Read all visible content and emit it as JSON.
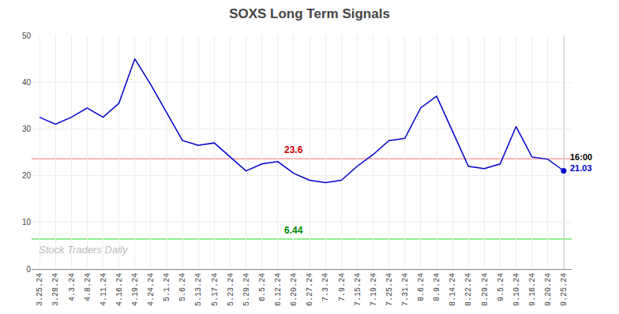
{
  "chart_data": {
    "type": "line",
    "title": "SOXS Long Term Signals",
    "categories": [
      "3.25.24",
      "3.28.24",
      "4.3.24",
      "4.8.24",
      "4.11.24",
      "4.16.24",
      "4.19.24",
      "4.24.24",
      "5.1.24",
      "5.6.24",
      "5.13.24",
      "5.17.24",
      "5.23.24",
      "5.29.24",
      "6.5.24",
      "6.12.24",
      "6.20.24",
      "6.27.24",
      "7.3.24",
      "7.9.24",
      "7.15.24",
      "7.19.24",
      "7.25.24",
      "7.31.24",
      "8.6.24",
      "8.9.24",
      "8.14.24",
      "8.22.24",
      "8.29.24",
      "9.5.24",
      "9.10.24",
      "9.16.24",
      "9.20.24",
      "9.25.24"
    ],
    "values": [
      32.5,
      31.0,
      32.5,
      34.5,
      32.5,
      35.5,
      45.0,
      39.5,
      33.5,
      27.5,
      26.5,
      27.0,
      24.0,
      21.0,
      22.5,
      23.0,
      20.5,
      19.0,
      18.5,
      19.0,
      22.0,
      24.5,
      27.5,
      28.0,
      34.5,
      37.0,
      29.5,
      22.0,
      21.5,
      22.5,
      30.5,
      24.0,
      23.5,
      21.03
    ],
    "color": "#0000cc",
    "ylim": [
      0,
      50
    ],
    "yticks": [
      0,
      10,
      20,
      30,
      40,
      50
    ],
    "grid": true,
    "hlines": [
      {
        "y": 23.6,
        "label": "23.6",
        "color": "#ffb3b3",
        "label_color": "#cc0000",
        "label_x": "6.20.24"
      },
      {
        "y": 6.44,
        "label": "6.44",
        "color": "#90ee90",
        "label_color": "#008800",
        "label_x": "6.20.24"
      }
    ],
    "vline": "9.25.24",
    "annotations": [
      {
        "text": "16:00",
        "x": "9.25.24",
        "y": 21.03
      },
      {
        "text": "21.03",
        "x": "9.25.24",
        "y": 21.03,
        "color": "#0000cc"
      }
    ],
    "watermark": {
      "text": "Stock Traders Daily",
      "color": "#bbbbbb"
    }
  }
}
